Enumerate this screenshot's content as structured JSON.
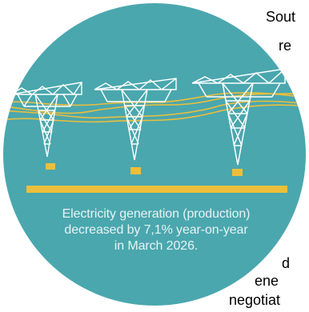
{
  "caption": {
    "line1": "Electricity generation (production)",
    "line2": "decreased by 7,1% year-on-year",
    "line3": "in March 2026."
  },
  "side_text": {
    "line1": "Sout",
    "line2": "re",
    "line3": "d",
    "line4": "ene",
    "line5": "negotiat"
  },
  "colors": {
    "circle": "#4AA7AE",
    "accent": "#EDBE3B",
    "tower": "#FFFFFF",
    "caption_text": "#E8F3F4",
    "side_text": "#000000"
  },
  "icons": {
    "towers": "power-transmission-tower-icon",
    "ground": "ground-bar"
  }
}
